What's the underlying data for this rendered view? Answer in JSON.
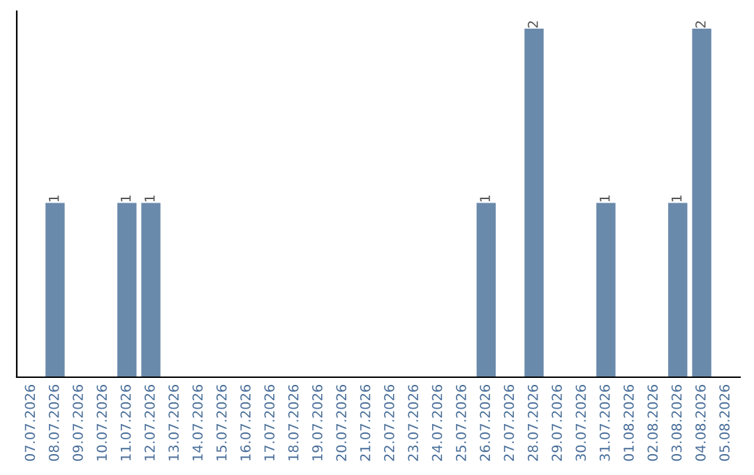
{
  "chart_data": {
    "type": "bar",
    "categories": [
      "07.07.2026",
      "08.07.2026",
      "09.07.2026",
      "10.07.2026",
      "11.07.2026",
      "12.07.2026",
      "13.07.2026",
      "14.07.2026",
      "15.07.2026",
      "16.07.2026",
      "17.07.2026",
      "18.07.2026",
      "19.07.2026",
      "20.07.2026",
      "21.07.2026",
      "22.07.2026",
      "23.07.2026",
      "24.07.2026",
      "25.07.2026",
      "26.07.2026",
      "27.07.2026",
      "28.07.2026",
      "29.07.2026",
      "30.07.2026",
      "31.07.2026",
      "01.08.2026",
      "02.08.2026",
      "03.08.2026",
      "04.08.2026",
      "05.08.2026"
    ],
    "values": [
      0,
      1,
      0,
      0,
      1,
      1,
      0,
      0,
      0,
      0,
      0,
      0,
      0,
      0,
      0,
      0,
      0,
      0,
      0,
      1,
      0,
      2,
      0,
      0,
      1,
      0,
      0,
      1,
      2,
      0
    ],
    "value_labels": [
      null,
      "1",
      null,
      null,
      "1",
      "1",
      null,
      null,
      null,
      null,
      null,
      null,
      null,
      null,
      null,
      null,
      null,
      null,
      null,
      "1",
      null,
      "2",
      null,
      null,
      "1",
      null,
      null,
      "1",
      "2",
      null
    ],
    "color": "#6a8aab",
    "tick_labels": "x",
    "grid": false,
    "legend": false
  }
}
